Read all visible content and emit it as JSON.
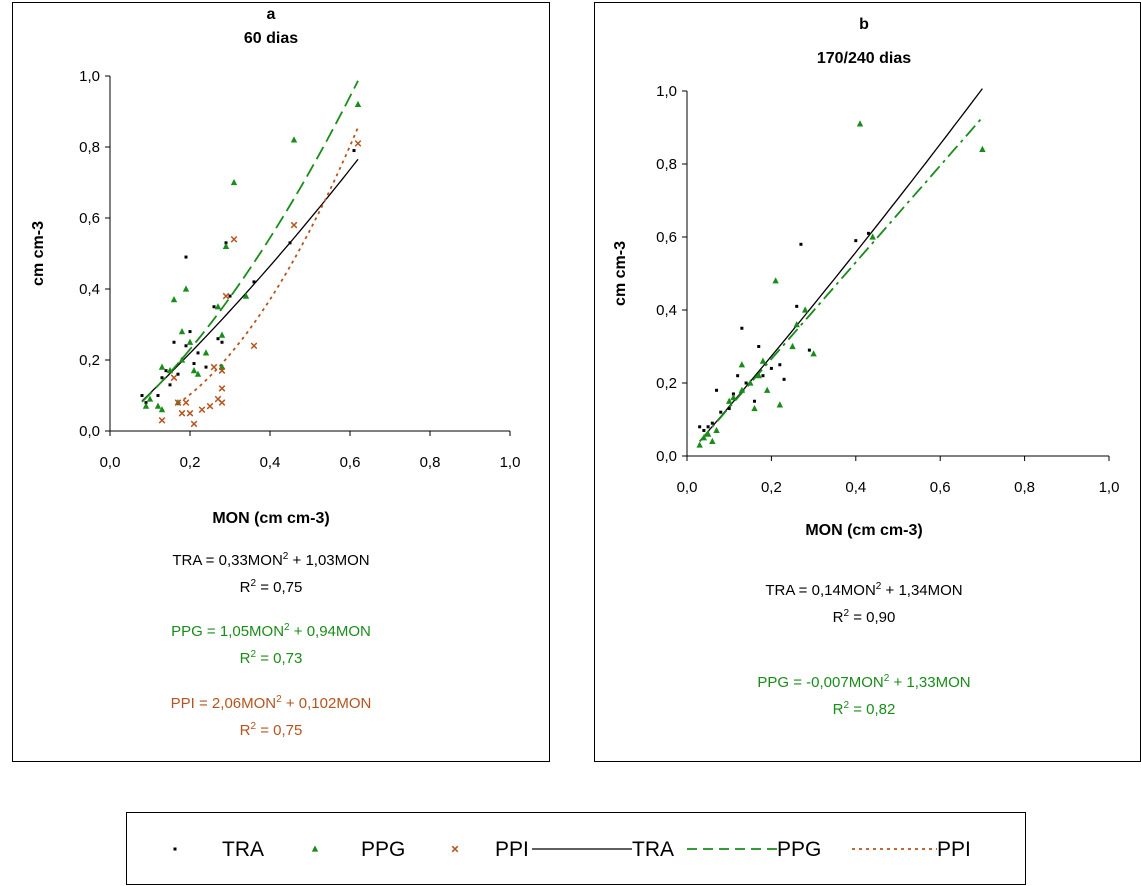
{
  "colors": {
    "TRA": "#000000",
    "PPG": "#1a8c1a",
    "PPI": "#b5541f"
  },
  "chart_data": [
    {
      "type": "scatter",
      "panel_letter": "a",
      "title": "60 dias",
      "xlabel": "MON (cm cm-3)",
      "ylabel": "cm cm-3",
      "xlim": [
        0,
        1
      ],
      "ylim": [
        0,
        1
      ],
      "xticks": [
        "0,0",
        "0,2",
        "0,4",
        "0,6",
        "0,8",
        "1,0"
      ],
      "yticks": [
        "0,0",
        "0,2",
        "0,4",
        "0,6",
        "0,8",
        "1,0"
      ],
      "legend": "bottom",
      "series": [
        {
          "name": "TRA",
          "marker": "dot",
          "points": [
            [
              0.08,
              0.1
            ],
            [
              0.09,
              0.08
            ],
            [
              0.12,
              0.1
            ],
            [
              0.13,
              0.15
            ],
            [
              0.14,
              0.17
            ],
            [
              0.15,
              0.13
            ],
            [
              0.16,
              0.25
            ],
            [
              0.17,
              0.16
            ],
            [
              0.18,
              0.2
            ],
            [
              0.19,
              0.49
            ],
            [
              0.19,
              0.24
            ],
            [
              0.2,
              0.28
            ],
            [
              0.21,
              0.19
            ],
            [
              0.22,
              0.22
            ],
            [
              0.24,
              0.18
            ],
            [
              0.26,
              0.35
            ],
            [
              0.27,
              0.26
            ],
            [
              0.28,
              0.25
            ],
            [
              0.28,
              0.18
            ],
            [
              0.29,
              0.53
            ],
            [
              0.3,
              0.38
            ],
            [
              0.36,
              0.42
            ],
            [
              0.45,
              0.53
            ],
            [
              0.61,
              0.79
            ]
          ]
        },
        {
          "name": "PPG",
          "marker": "triangle",
          "points": [
            [
              0.09,
              0.07
            ],
            [
              0.1,
              0.09
            ],
            [
              0.12,
              0.07
            ],
            [
              0.13,
              0.06
            ],
            [
              0.13,
              0.18
            ],
            [
              0.15,
              0.17
            ],
            [
              0.16,
              0.37
            ],
            [
              0.17,
              0.08
            ],
            [
              0.18,
              0.2
            ],
            [
              0.18,
              0.28
            ],
            [
              0.19,
              0.4
            ],
            [
              0.2,
              0.25
            ],
            [
              0.21,
              0.17
            ],
            [
              0.22,
              0.16
            ],
            [
              0.24,
              0.22
            ],
            [
              0.27,
              0.35
            ],
            [
              0.28,
              0.27
            ],
            [
              0.28,
              0.18
            ],
            [
              0.29,
              0.52
            ],
            [
              0.31,
              0.7
            ],
            [
              0.34,
              0.38
            ],
            [
              0.46,
              0.82
            ],
            [
              0.62,
              0.92
            ]
          ]
        },
        {
          "name": "PPI",
          "marker": "x",
          "points": [
            [
              0.13,
              0.03
            ],
            [
              0.16,
              0.15
            ],
            [
              0.17,
              0.08
            ],
            [
              0.18,
              0.05
            ],
            [
              0.19,
              0.08
            ],
            [
              0.2,
              0.05
            ],
            [
              0.21,
              0.02
            ],
            [
              0.23,
              0.06
            ],
            [
              0.25,
              0.07
            ],
            [
              0.26,
              0.18
            ],
            [
              0.27,
              0.09
            ],
            [
              0.28,
              0.08
            ],
            [
              0.28,
              0.12
            ],
            [
              0.28,
              0.17
            ],
            [
              0.29,
              0.38
            ],
            [
              0.31,
              0.54
            ],
            [
              0.36,
              0.24
            ],
            [
              0.46,
              0.58
            ],
            [
              0.62,
              0.81
            ]
          ]
        }
      ],
      "fits": [
        {
          "name": "TRA",
          "a": 0.33,
          "b": 1.03,
          "xrange": [
            0.08,
            0.62
          ],
          "dash": ""
        },
        {
          "name": "PPG",
          "a": 1.05,
          "b": 0.94,
          "xrange": [
            0.08,
            0.62
          ],
          "dash": "14,6"
        },
        {
          "name": "PPI",
          "a": 2.06,
          "b": 0.102,
          "xrange": [
            0.17,
            0.62
          ],
          "dash": "3,4"
        }
      ],
      "equations": [
        {
          "series": "TRA",
          "formula_pre": "TRA = 0,33MON",
          "formula_post": " + 1,03MON",
          "r2": " = 0,75"
        },
        {
          "series": "PPG",
          "formula_pre": "PPG = 1,05MON",
          "formula_post": " + 0,94MON",
          "r2": " = 0,73"
        },
        {
          "series": "PPI",
          "formula_pre": "PPI = 2,06MON",
          "formula_post": " + 0,102MON",
          "r2": " = 0,75"
        }
      ]
    },
    {
      "type": "scatter",
      "panel_letter": "b",
      "title": "170/240 dias",
      "xlabel": "MON (cm cm-3)",
      "ylabel": "cm cm-3",
      "xlim": [
        0,
        1
      ],
      "ylim": [
        0,
        1
      ],
      "xticks": [
        "0,0",
        "0,2",
        "0,4",
        "0,6",
        "0,8",
        "1,0"
      ],
      "yticks": [
        "0,0",
        "0,2",
        "0,4",
        "0,6",
        "0,8",
        "1,0"
      ],
      "legend": "bottom",
      "series": [
        {
          "name": "TRA",
          "marker": "dot",
          "points": [
            [
              0.03,
              0.08
            ],
            [
              0.04,
              0.07
            ],
            [
              0.05,
              0.08
            ],
            [
              0.06,
              0.09
            ],
            [
              0.07,
              0.18
            ],
            [
              0.08,
              0.12
            ],
            [
              0.1,
              0.13
            ],
            [
              0.11,
              0.17
            ],
            [
              0.12,
              0.22
            ],
            [
              0.13,
              0.35
            ],
            [
              0.14,
              0.2
            ],
            [
              0.16,
              0.15
            ],
            [
              0.17,
              0.3
            ],
            [
              0.18,
              0.22
            ],
            [
              0.2,
              0.24
            ],
            [
              0.22,
              0.25
            ],
            [
              0.23,
              0.21
            ],
            [
              0.26,
              0.41
            ],
            [
              0.27,
              0.58
            ],
            [
              0.29,
              0.29
            ],
            [
              0.4,
              0.59
            ],
            [
              0.43,
              0.61
            ]
          ]
        },
        {
          "name": "PPG",
          "marker": "triangle",
          "points": [
            [
              0.03,
              0.03
            ],
            [
              0.04,
              0.05
            ],
            [
              0.05,
              0.06
            ],
            [
              0.06,
              0.04
            ],
            [
              0.07,
              0.07
            ],
            [
              0.1,
              0.15
            ],
            [
              0.11,
              0.16
            ],
            [
              0.13,
              0.25
            ],
            [
              0.13,
              0.18
            ],
            [
              0.15,
              0.2
            ],
            [
              0.16,
              0.13
            ],
            [
              0.17,
              0.22
            ],
            [
              0.18,
              0.26
            ],
            [
              0.19,
              0.18
            ],
            [
              0.21,
              0.48
            ],
            [
              0.22,
              0.14
            ],
            [
              0.25,
              0.3
            ],
            [
              0.26,
              0.36
            ],
            [
              0.28,
              0.4
            ],
            [
              0.3,
              0.28
            ],
            [
              0.41,
              0.91
            ],
            [
              0.44,
              0.6
            ],
            [
              0.7,
              0.84
            ]
          ]
        }
      ],
      "fits": [
        {
          "name": "TRA",
          "a": 0.14,
          "b": 1.34,
          "xrange": [
            0.03,
            0.7
          ],
          "dash": ""
        },
        {
          "name": "PPG",
          "a": -0.007,
          "b": 1.33,
          "xrange": [
            0.03,
            0.7
          ],
          "dash": "14,5,3,5"
        }
      ],
      "equations": [
        {
          "series": "TRA",
          "formula_pre": "TRA = 0,14MON",
          "formula_post": " + 1,34MON",
          "r2": " = 0,90"
        },
        {
          "series": "PPG",
          "formula_pre": "PPG = -0,007MON",
          "formula_post": " + 1,33MON",
          "r2": " = 0,82"
        }
      ]
    }
  ],
  "legend": [
    {
      "label": "TRA",
      "kind": "marker",
      "marker": "dot",
      "series": "TRA"
    },
    {
      "label": "PPG",
      "kind": "marker",
      "marker": "triangle",
      "series": "PPG"
    },
    {
      "label": "PPI",
      "kind": "marker",
      "marker": "x",
      "series": "PPI"
    },
    {
      "label": "TRA",
      "kind": "line",
      "dash": "",
      "series": "TRA"
    },
    {
      "label": "PPG",
      "kind": "line",
      "dash": "10,6",
      "series": "PPG"
    },
    {
      "label": "PPI",
      "kind": "line",
      "dash": "3,4",
      "series": "PPI"
    }
  ]
}
